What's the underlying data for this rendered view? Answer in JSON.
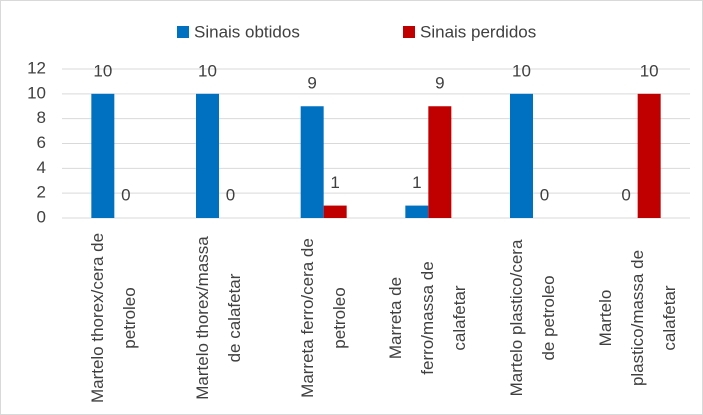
{
  "chart_data": {
    "type": "bar",
    "categories": [
      "Martelo thorex/cera de petroleo",
      "Martelo thorex/massa de calafetar",
      "Marreta ferro/cera de petroleo",
      "Marreta de ferro/massa de calafetar",
      "Martelo plastico/cera de petroleo",
      "Martelo plastico/massa de calafetar"
    ],
    "series": [
      {
        "name": "Sinais obtidos",
        "color": "#0070c0",
        "values": [
          10,
          10,
          9,
          1,
          10,
          0
        ]
      },
      {
        "name": "Sinais perdidos",
        "color": "#c00000",
        "values": [
          0,
          0,
          1,
          9,
          0,
          10
        ]
      }
    ],
    "ylim": [
      0,
      12
    ],
    "yticks": [
      0,
      2,
      4,
      6,
      8,
      10,
      12
    ],
    "grid": true,
    "legend": "top"
  }
}
